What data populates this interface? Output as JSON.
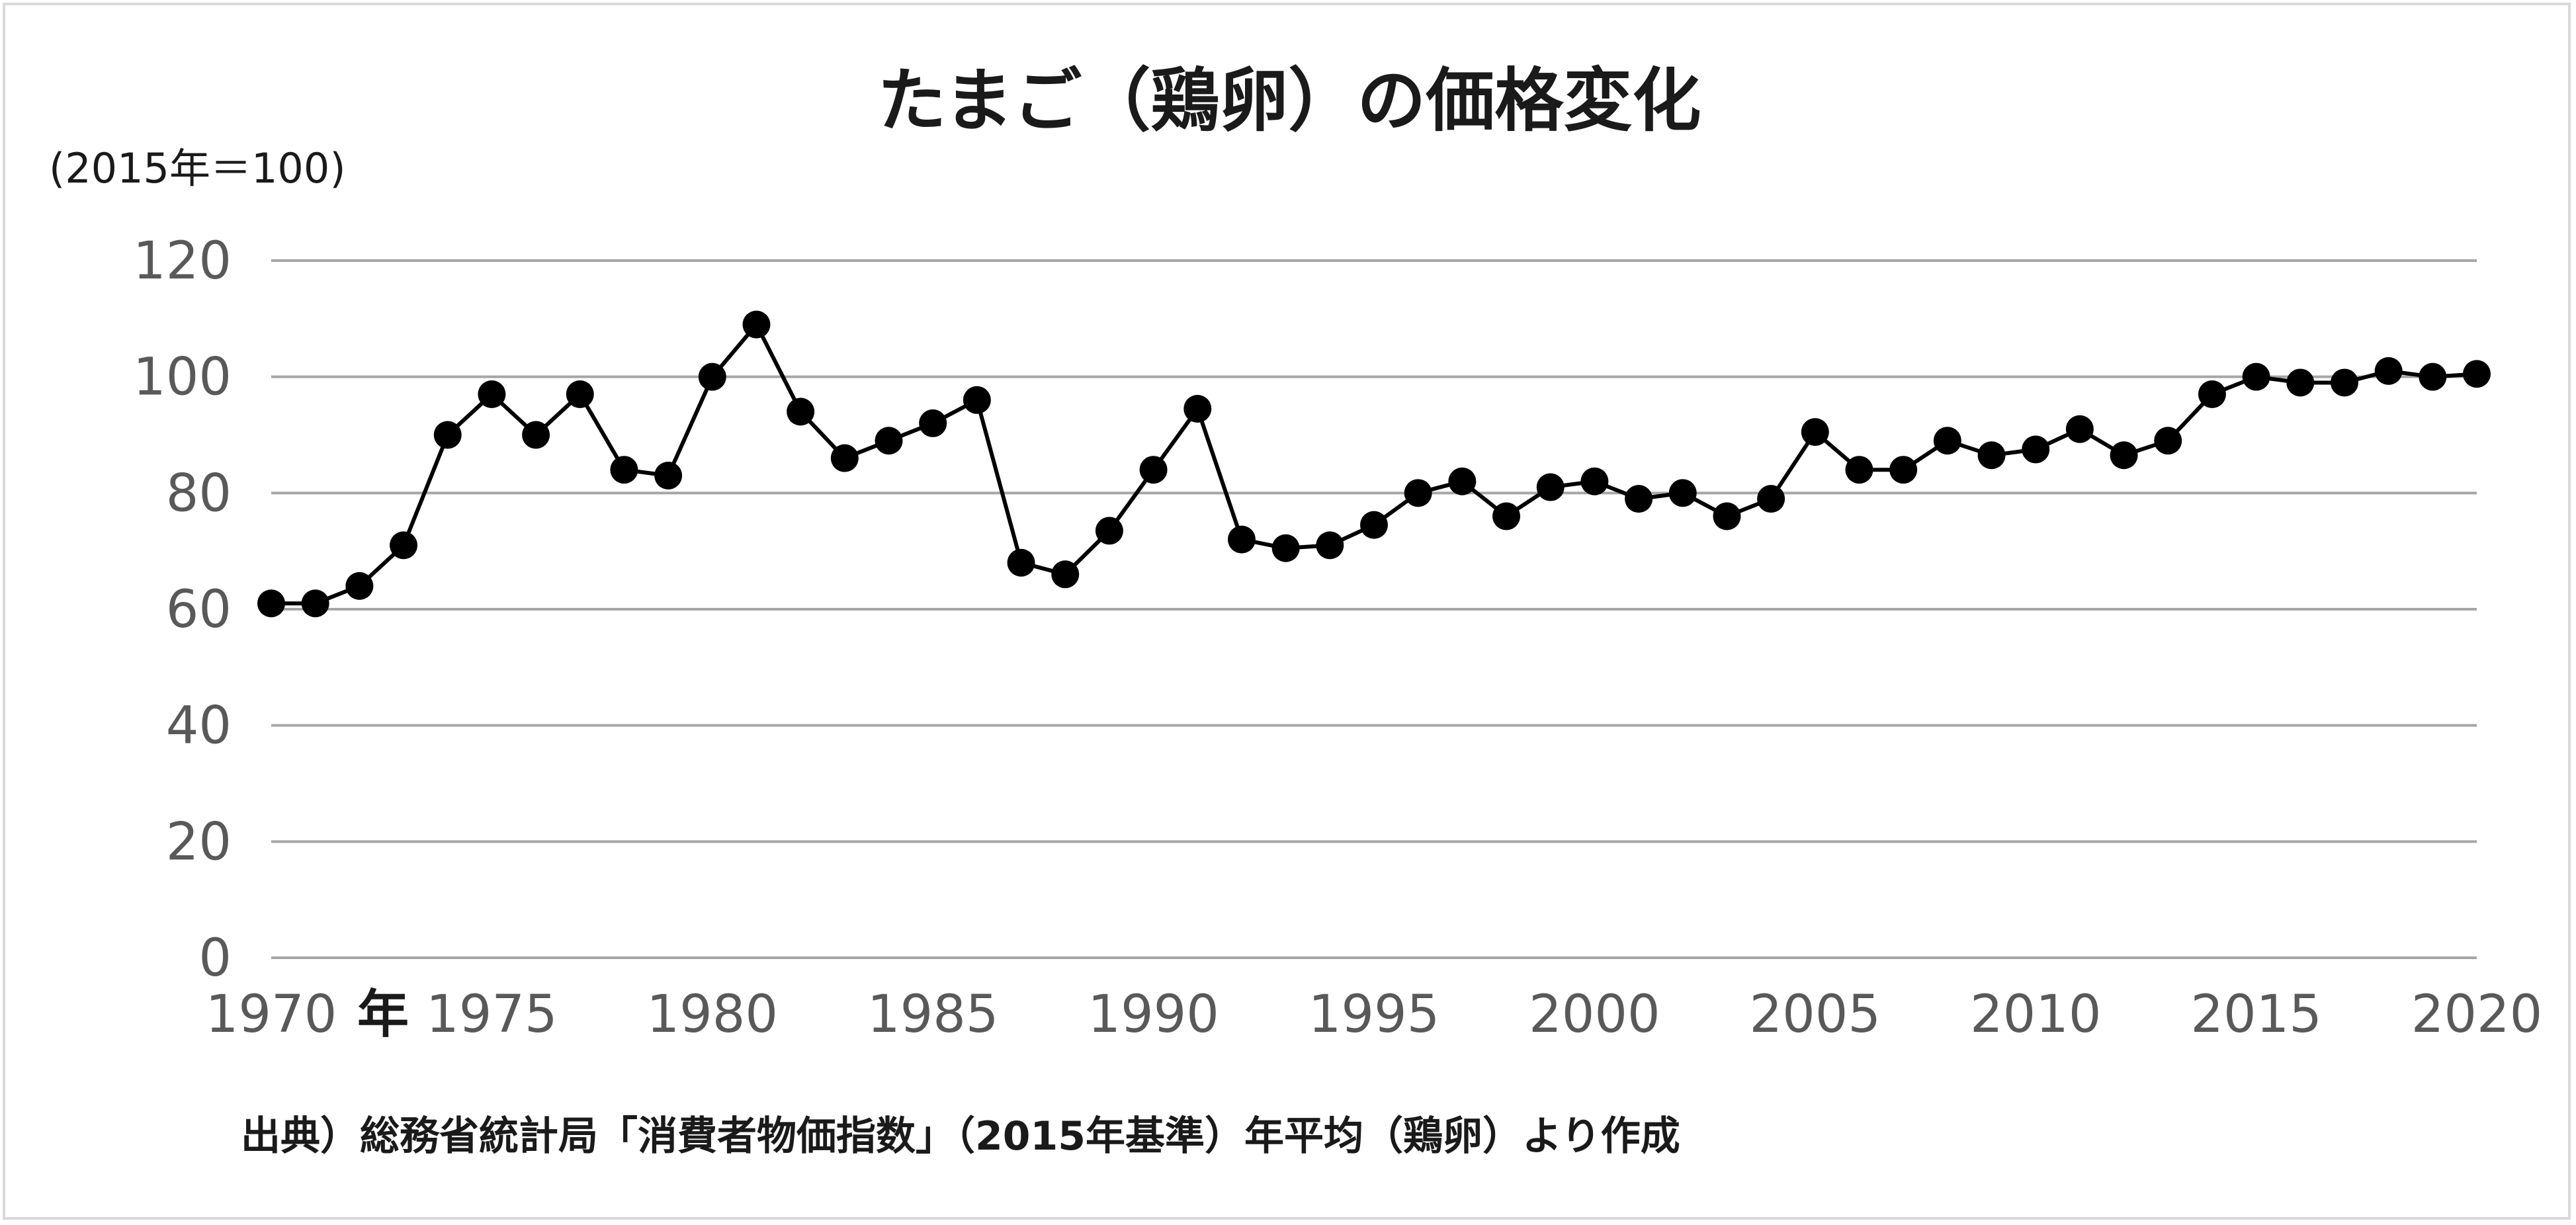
{
  "chart_data": {
    "type": "line",
    "title": "たまご（鶏卵）の価格変化",
    "ylabel": "(2015年＝100)",
    "x_suffix": "年",
    "source": "出典）総務省統計局「消費者物価指数」（2015年基準）年平均（鶏卵）より作成",
    "x": [
      1970,
      1971,
      1972,
      1973,
      1974,
      1975,
      1976,
      1977,
      1978,
      1979,
      1980,
      1981,
      1982,
      1983,
      1984,
      1985,
      1986,
      1987,
      1988,
      1989,
      1990,
      1991,
      1992,
      1993,
      1994,
      1995,
      1996,
      1997,
      1998,
      1999,
      2000,
      2001,
      2002,
      2003,
      2004,
      2005,
      2006,
      2007,
      2008,
      2009,
      2010,
      2011,
      2012,
      2013,
      2014,
      2015,
      2016,
      2017,
      2018,
      2019,
      2020
    ],
    "values": [
      61,
      61,
      64,
      71,
      90,
      97,
      90,
      97,
      84,
      83,
      100,
      109,
      94,
      86,
      89,
      92,
      96,
      68,
      66,
      73.5,
      84,
      94.5,
      72,
      70.5,
      71,
      74.5,
      80,
      82,
      76,
      81,
      82,
      79,
      80,
      76,
      79,
      90.5,
      84,
      84,
      89,
      86.5,
      87.5,
      91,
      86.5,
      89,
      97,
      100,
      99,
      99,
      101,
      100,
      100.5
    ],
    "x_ticks": [
      1970,
      1975,
      1980,
      1985,
      1990,
      1995,
      2000,
      2005,
      2010,
      2015,
      2020
    ],
    "y_ticks": [
      0,
      20,
      40,
      60,
      80,
      100,
      120
    ],
    "ylim": [
      0,
      120
    ],
    "xlim": [
      1970,
      2020
    ],
    "grid": true,
    "legend": "none",
    "line_color": "#000000",
    "grid_color": "#a6a6a6"
  }
}
